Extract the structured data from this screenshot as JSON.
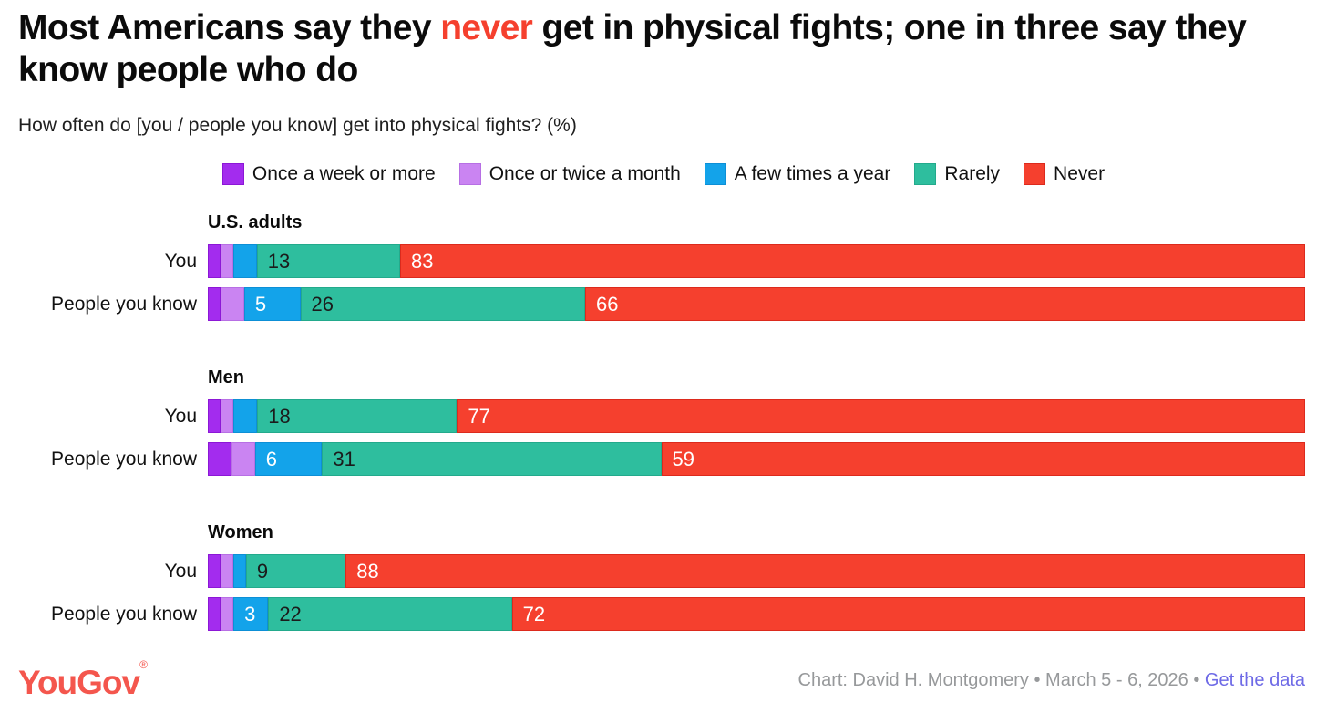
{
  "title": {
    "prefix": "Most Americans say they ",
    "highlight": "never",
    "suffix": " get in physical fights; one in three say they know people who do",
    "highlight_color": "#F5402E"
  },
  "subtitle": "How often do [you / people you know] get into physical fights? (%)",
  "chart_data": {
    "type": "bar",
    "stacked": true,
    "orientation": "horizontal",
    "unit": "%",
    "x_max": 100,
    "grid": false,
    "legend_position": "top-center",
    "series_names": [
      "Once a week or more",
      "Once or twice a month",
      "A few times a year",
      "Rarely",
      "Never"
    ],
    "series_keys": [
      "once-a-week-or-more",
      "once-or-twice-a-month",
      "a-few-times-a-year",
      "rarely",
      "never"
    ],
    "series_colors": [
      "#A32CEE",
      "#CA84F2",
      "#13A3EA",
      "#2EBE9E",
      "#F5402E"
    ],
    "series_border_colors": [
      "#8C17D6",
      "#B76FE4",
      "#0D8FD6",
      "#23AA8C",
      "#DC2A1D"
    ],
    "series_label_text_colors": [
      "#ffffff",
      "#ffffff",
      "#ffffff",
      "#1B1B1B",
      "#ffffff"
    ],
    "groups": [
      {
        "name": "U.S. adults",
        "rows": [
          {
            "label": "You",
            "values": [
              1,
              1,
              2,
              13,
              83
            ],
            "display_labels": [
              "",
              "",
              "",
              "13",
              "83"
            ]
          },
          {
            "label": "People you know",
            "values": [
              1,
              2,
              5,
              26,
              66
            ],
            "display_labels": [
              "",
              "",
              "5",
              "26",
              "66"
            ]
          }
        ]
      },
      {
        "name": "Men",
        "rows": [
          {
            "label": "You",
            "values": [
              1,
              1,
              2,
              18,
              77
            ],
            "display_labels": [
              "",
              "",
              "",
              "18",
              "77"
            ]
          },
          {
            "label": "People you know",
            "values": [
              2,
              2,
              6,
              31,
              59
            ],
            "display_labels": [
              "",
              "",
              "6",
              "31",
              "59"
            ]
          }
        ]
      },
      {
        "name": "Women",
        "rows": [
          {
            "label": "You",
            "values": [
              1,
              1,
              1,
              9,
              88
            ],
            "display_labels": [
              "",
              "",
              "",
              "9",
              "88"
            ]
          },
          {
            "label": "People you know",
            "values": [
              1,
              1,
              3,
              22,
              72
            ],
            "display_labels": [
              "",
              "",
              "3",
              "22",
              "72"
            ]
          }
        ]
      }
    ]
  },
  "footer": {
    "logo": "YouGov",
    "logo_reg": "®",
    "credit": "Chart: David H. Montgomery • March 5 - 6, 2026 •",
    "link": "Get the data"
  }
}
